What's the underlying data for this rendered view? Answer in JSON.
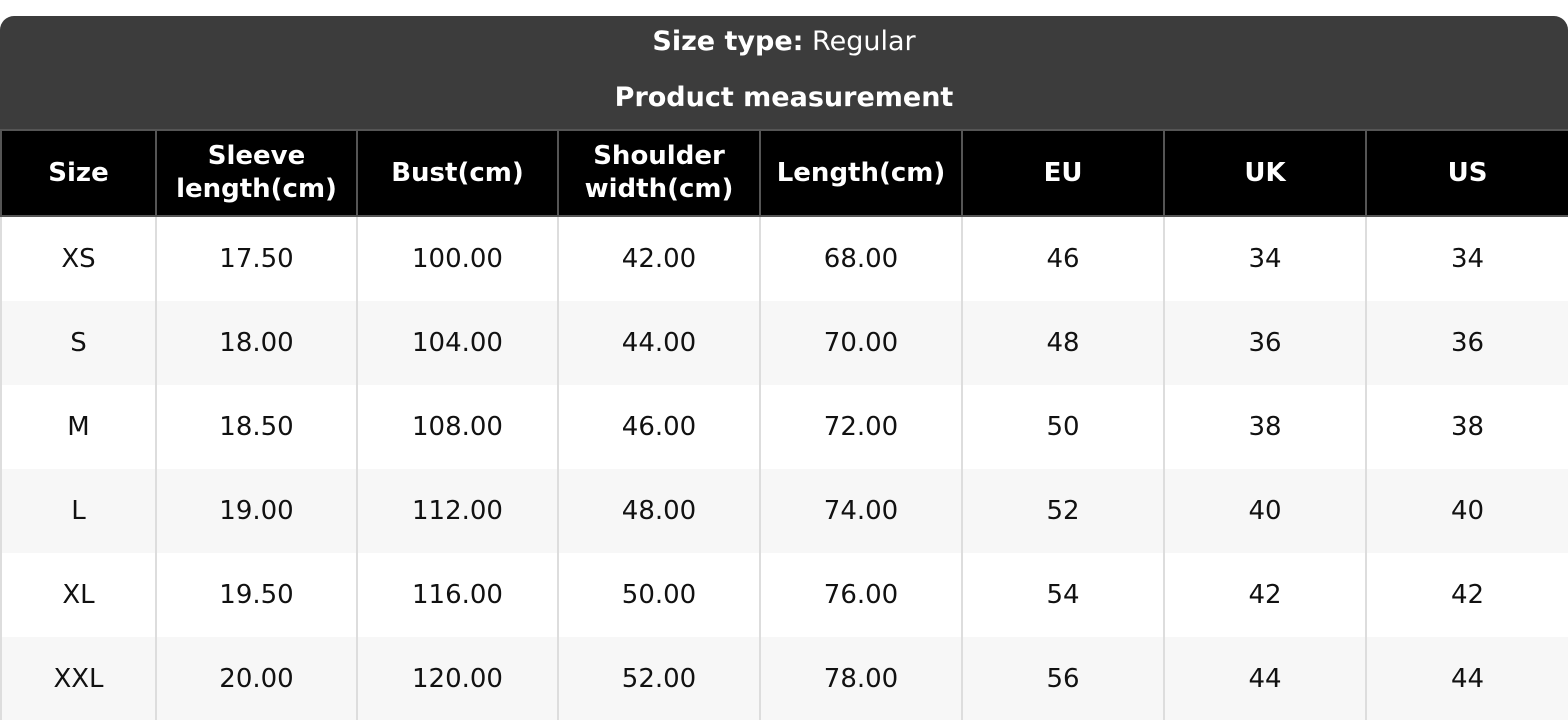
{
  "header": {
    "size_type_label": "Size type:",
    "size_type_value": "Regular",
    "title": "Product measurement"
  },
  "columns": [
    [
      "Size"
    ],
    [
      "Sleeve",
      "length(cm)"
    ],
    [
      "Bust(cm)"
    ],
    [
      "Shoulder",
      "width(cm)"
    ],
    [
      "Length(cm)"
    ],
    [
      "EU"
    ],
    [
      "UK"
    ],
    [
      "US"
    ]
  ],
  "rows": [
    [
      "XS",
      "17.50",
      "100.00",
      "42.00",
      "68.00",
      "46",
      "34",
      "34"
    ],
    [
      "S",
      "18.00",
      "104.00",
      "44.00",
      "70.00",
      "48",
      "36",
      "36"
    ],
    [
      "M",
      "18.50",
      "108.00",
      "46.00",
      "72.00",
      "50",
      "38",
      "38"
    ],
    [
      "L",
      "19.00",
      "112.00",
      "48.00",
      "74.00",
      "52",
      "40",
      "40"
    ],
    [
      "XL",
      "19.50",
      "116.00",
      "50.00",
      "76.00",
      "54",
      "42",
      "42"
    ],
    [
      "XXL",
      "20.00",
      "120.00",
      "52.00",
      "78.00",
      "56",
      "44",
      "44"
    ]
  ]
}
